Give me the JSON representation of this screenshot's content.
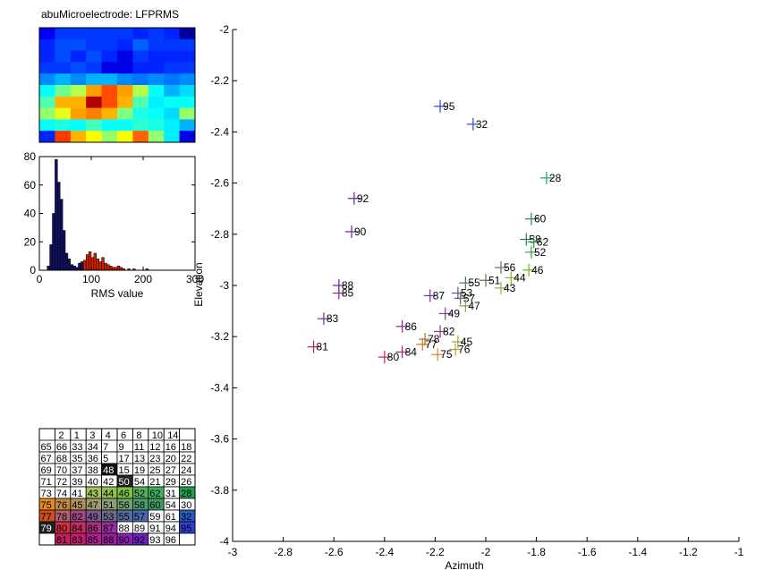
{
  "title": "abuMicroelectrode: LFPRMS",
  "chart_data": [
    {
      "type": "heatmap",
      "title": "abuMicroelectrode: LFPRMS",
      "rows": [
        [
          0.12,
          0.18,
          0.18,
          0.18,
          0.18,
          0.18,
          0.16,
          0.18,
          0.16,
          0.03
        ],
        [
          0.16,
          0.2,
          0.2,
          0.18,
          0.18,
          0.16,
          0.22,
          0.18,
          0.18,
          0.18
        ],
        [
          0.16,
          0.2,
          0.16,
          0.2,
          0.16,
          0.1,
          0.18,
          0.16,
          0.16,
          0.16
        ],
        [
          0.18,
          0.18,
          0.2,
          0.18,
          0.1,
          0.1,
          0.16,
          0.16,
          0.18,
          0.18
        ],
        [
          0.26,
          0.3,
          0.26,
          0.3,
          0.3,
          0.26,
          0.24,
          0.26,
          0.24,
          0.26
        ],
        [
          0.38,
          0.48,
          0.55,
          0.72,
          0.8,
          0.72,
          0.55,
          0.38,
          0.3,
          0.34
        ],
        [
          0.45,
          0.7,
          0.7,
          0.95,
          0.8,
          0.7,
          0.45,
          0.36,
          0.38,
          0.38
        ],
        [
          0.52,
          0.6,
          0.72,
          0.75,
          0.7,
          0.5,
          0.4,
          0.38,
          0.34,
          0.52
        ],
        [
          0.38,
          0.4,
          0.38,
          0.44,
          0.38,
          0.38,
          0.42,
          0.4,
          0.36,
          0.3
        ],
        [
          0.16,
          0.82,
          0.7,
          0.62,
          0.52,
          0.62,
          0.78,
          0.52,
          0.36,
          0.1
        ]
      ]
    },
    {
      "type": "bar",
      "xlabel": "RMS value",
      "xlim": [
        0,
        300
      ],
      "ylim": [
        0,
        80
      ],
      "xticks": [
        "0",
        "100",
        "200",
        "300"
      ],
      "yticks": [
        "0",
        "20",
        "40",
        "60",
        "80"
      ],
      "bin_width": 5,
      "bins": [
        [
          15,
          3
        ],
        [
          20,
          18
        ],
        [
          25,
          40
        ],
        [
          30,
          78
        ],
        [
          35,
          62
        ],
        [
          40,
          50
        ],
        [
          45,
          28
        ],
        [
          50,
          12
        ],
        [
          55,
          8
        ],
        [
          60,
          4
        ],
        [
          65,
          3
        ],
        [
          70,
          2
        ],
        [
          75,
          5
        ],
        [
          80,
          6
        ],
        [
          85,
          7
        ],
        [
          90,
          11
        ],
        [
          95,
          13
        ],
        [
          100,
          9
        ],
        [
          105,
          12
        ],
        [
          110,
          8
        ],
        [
          115,
          6
        ],
        [
          120,
          9
        ],
        [
          125,
          5
        ],
        [
          130,
          4
        ],
        [
          135,
          3
        ],
        [
          140,
          2
        ],
        [
          145,
          2
        ],
        [
          150,
          3
        ],
        [
          155,
          2
        ],
        [
          160,
          1
        ],
        [
          170,
          1
        ],
        [
          180,
          1
        ],
        [
          205,
          1
        ]
      ],
      "highlight_bins": [
        [
          85,
          7
        ],
        [
          90,
          11
        ],
        [
          95,
          13
        ],
        [
          100,
          9
        ],
        [
          105,
          12
        ],
        [
          110,
          8
        ],
        [
          115,
          6
        ],
        [
          120,
          9
        ],
        [
          125,
          5
        ],
        [
          130,
          4
        ],
        [
          135,
          3
        ],
        [
          140,
          2
        ],
        [
          145,
          2
        ],
        [
          150,
          3
        ],
        [
          155,
          2
        ],
        [
          160,
          1
        ],
        [
          170,
          1
        ],
        [
          180,
          1
        ],
        [
          205,
          1
        ]
      ]
    },
    {
      "type": "scatter",
      "xlabel": "Azimuth",
      "ylabel": "Elevation",
      "xlim": [
        -3,
        -1
      ],
      "ylim": [
        -4,
        -2
      ],
      "xticks": [
        "-3",
        "-2.8",
        "-2.6",
        "-2.4",
        "-2.2",
        "-2",
        "-1.8",
        "-1.6",
        "-1.4",
        "-1.2",
        "-1"
      ],
      "yticks": [
        "-2",
        "-2.2",
        "-2.4",
        "-2.6",
        "-2.8",
        "-3",
        "-3.2",
        "-3.4",
        "-3.6",
        "-3.8",
        "-4"
      ],
      "points": [
        {
          "label": "95",
          "x": -2.18,
          "y": -2.3,
          "color": "#2a3fd0"
        },
        {
          "label": "32",
          "x": -2.05,
          "y": -2.37,
          "color": "#2050c0"
        },
        {
          "label": "28",
          "x": -1.76,
          "y": -2.58,
          "color": "#20a060"
        },
        {
          "label": "92",
          "x": -2.52,
          "y": -2.66,
          "color": "#6a22a0"
        },
        {
          "label": "90",
          "x": -2.53,
          "y": -2.79,
          "color": "#6a22a0"
        },
        {
          "label": "60",
          "x": -1.82,
          "y": -2.74,
          "color": "#208070"
        },
        {
          "label": "58",
          "x": -1.84,
          "y": -2.82,
          "color": "#307a5a"
        },
        {
          "label": "62",
          "x": -1.81,
          "y": -2.83,
          "color": "#309050"
        },
        {
          "label": "52",
          "x": -1.82,
          "y": -2.87,
          "color": "#40a040"
        },
        {
          "label": "56",
          "x": -1.94,
          "y": -2.93,
          "color": "#557a5a"
        },
        {
          "label": "46",
          "x": -1.83,
          "y": -2.94,
          "color": "#70b030"
        },
        {
          "label": "44",
          "x": -1.9,
          "y": -2.97,
          "color": "#80b030"
        },
        {
          "label": "51",
          "x": -2.0,
          "y": -2.98,
          "color": "#5a7050"
        },
        {
          "label": "55",
          "x": -2.08,
          "y": -2.99,
          "color": "#556a70"
        },
        {
          "label": "43",
          "x": -1.94,
          "y": -3.01,
          "color": "#90b040"
        },
        {
          "label": "88",
          "x": -2.58,
          "y": -3.0,
          "color": "#6a22a0"
        },
        {
          "label": "85",
          "x": -2.58,
          "y": -3.03,
          "color": "#7a2aa0"
        },
        {
          "label": "87",
          "x": -2.22,
          "y": -3.04,
          "color": "#7a2a9a"
        },
        {
          "label": "53",
          "x": -2.11,
          "y": -3.03,
          "color": "#5a5a7a"
        },
        {
          "label": "57",
          "x": -2.1,
          "y": -3.05,
          "color": "#506a70"
        },
        {
          "label": "47",
          "x": -2.08,
          "y": -3.08,
          "color": "#90a040"
        },
        {
          "label": "49",
          "x": -2.16,
          "y": -3.11,
          "color": "#8a3a8a"
        },
        {
          "label": "83",
          "x": -2.64,
          "y": -3.13,
          "color": "#7a2a9a"
        },
        {
          "label": "86",
          "x": -2.33,
          "y": -3.16,
          "color": "#9a2a7a"
        },
        {
          "label": "82",
          "x": -2.18,
          "y": -3.18,
          "color": "#8a3a7a"
        },
        {
          "label": "78",
          "x": -2.24,
          "y": -3.21,
          "color": "#b06a2a"
        },
        {
          "label": "77",
          "x": -2.25,
          "y": -3.23,
          "color": "#c07a20"
        },
        {
          "label": "45",
          "x": -2.11,
          "y": -3.22,
          "color": "#a0a030"
        },
        {
          "label": "81",
          "x": -2.68,
          "y": -3.24,
          "color": "#b02050"
        },
        {
          "label": "84",
          "x": -2.33,
          "y": -3.26,
          "color": "#a02a6a"
        },
        {
          "label": "76",
          "x": -2.12,
          "y": -3.25,
          "color": "#b0a030"
        },
        {
          "label": "75",
          "x": -2.19,
          "y": -3.27,
          "color": "#e08020"
        },
        {
          "label": "80",
          "x": -2.4,
          "y": -3.28,
          "color": "#d02040"
        }
      ]
    },
    {
      "type": "table",
      "header": [
        "",
        "2",
        "1",
        "3",
        "4",
        "6",
        "8",
        "10",
        "14",
        ""
      ],
      "rows": [
        [
          "65",
          "66",
          "33",
          "34",
          "7",
          "9",
          "11",
          "12",
          "16",
          "18"
        ],
        [
          "67",
          "68",
          "35",
          "36",
          "5",
          "17",
          "13",
          "23",
          "20",
          "22"
        ],
        [
          "69",
          "70",
          "37",
          "38",
          "48",
          "15",
          "19",
          "25",
          "27",
          "24"
        ],
        [
          "71",
          "72",
          "39",
          "40",
          "42",
          "50",
          "54",
          "21",
          "29",
          "26"
        ],
        [
          "73",
          "74",
          "41",
          "43",
          "44",
          "46",
          "52",
          "62",
          "31",
          "28"
        ],
        [
          "75",
          "76",
          "45",
          "47",
          "51",
          "56",
          "58",
          "60",
          "54",
          "30"
        ],
        [
          "77",
          "78",
          "82",
          "49",
          "53",
          "55",
          "57",
          "59",
          "61",
          "32"
        ],
        [
          "79",
          "80",
          "84",
          "86",
          "87",
          "88",
          "89",
          "91",
          "94",
          "95"
        ],
        [
          "",
          "81",
          "83",
          "85",
          "88",
          "90",
          "92",
          "93",
          "96",
          ""
        ]
      ],
      "cell_colors": [
        [
          "#fff",
          "#fff",
          "#fff",
          "#fff",
          "#fff",
          "#fff",
          "#fff",
          "#fff",
          "#fff",
          "#fff"
        ],
        [
          "#fff",
          "#fff",
          "#fff",
          "#fff",
          "#fff",
          "#fff",
          "#fff",
          "#fff",
          "#fff",
          "#fff"
        ],
        [
          "#fff",
          "#fff",
          "#fff",
          "#fff",
          "#111",
          "#fff",
          "#fff",
          "#fff",
          "#fff",
          "#fff"
        ],
        [
          "#fff",
          "#fff",
          "#fff",
          "#fff",
          "#fff",
          "#222",
          "#fff",
          "#fff",
          "#fff",
          "#fff"
        ],
        [
          "#fff",
          "#fff",
          "#fff",
          "#a8c060",
          "#90c050",
          "#80c048",
          "#58b058",
          "#40b060",
          "#fff",
          "#20a050"
        ],
        [
          "#e88a20",
          "#c08a40",
          "#b09060",
          "#a09a70",
          "#909a78",
          "#70a070",
          "#509a70",
          "#409a60",
          "#fff",
          "#fff"
        ],
        [
          "#d05020",
          "#b06070",
          "#a04a80",
          "#7a5a8a",
          "#6a6a8a",
          "#5a6aa0",
          "#4a6ab0",
          "#fff",
          "#fff",
          "#2a5ac0"
        ],
        [
          "#202020",
          "#d03040",
          "#c03060",
          "#b03080",
          "#9a30a0",
          "#fff",
          "#fff",
          "#fff",
          "#fff",
          "#3040d0"
        ],
        [
          "#fff",
          "#c02060",
          "#c02070",
          "#b02090",
          "#9a20a0",
          "#8a20b0",
          "#6a20c0",
          "#fff",
          "#fff",
          "#fff"
        ]
      ]
    }
  ]
}
